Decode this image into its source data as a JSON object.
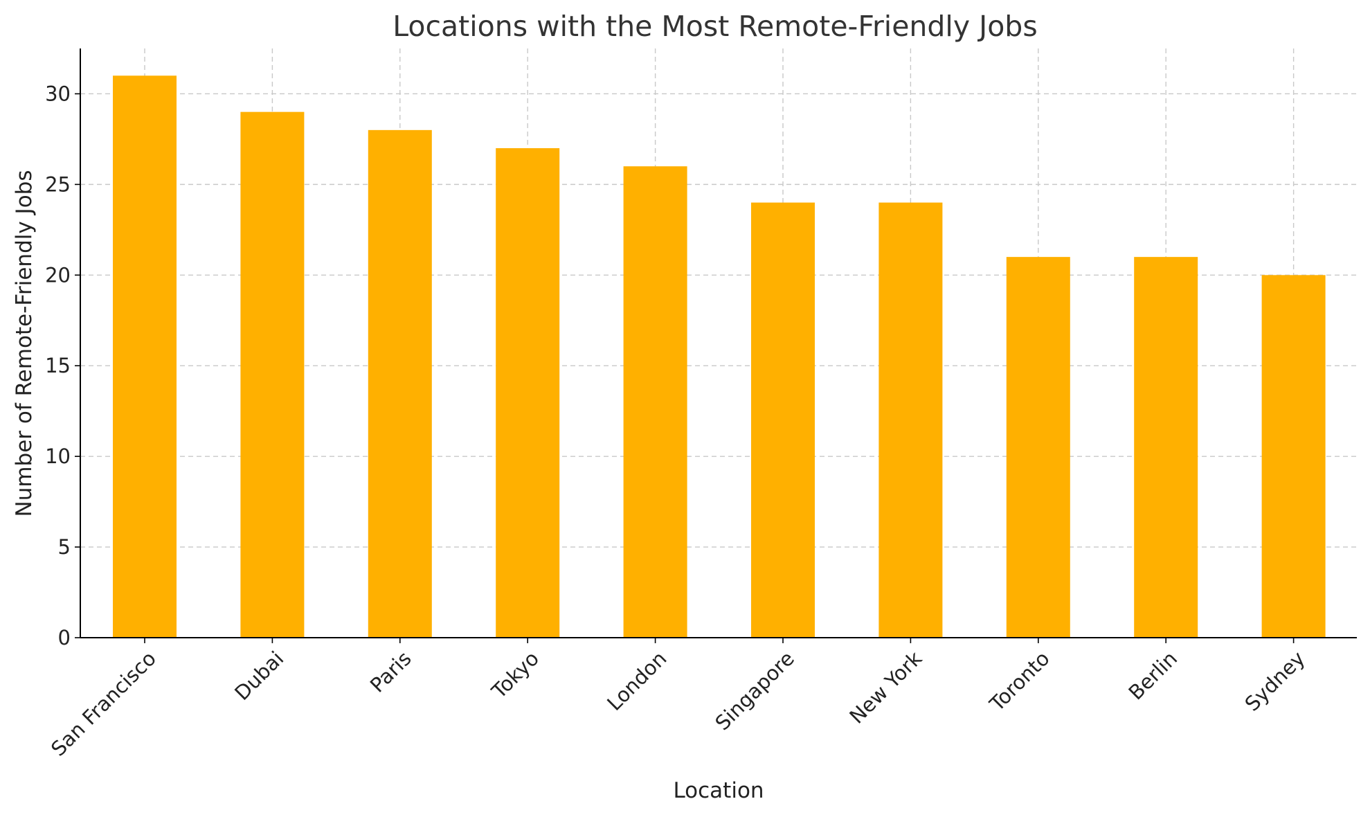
{
  "chart_data": {
    "type": "bar",
    "title": "Locations with the Most Remote-Friendly Jobs",
    "xlabel": "Location",
    "ylabel": "Number of Remote-Friendly Jobs",
    "categories": [
      "San Francisco",
      "Dubai",
      "Paris",
      "Tokyo",
      "London",
      "Singapore",
      "New York",
      "Toronto",
      "Berlin",
      "Sydney"
    ],
    "values": [
      31,
      29,
      28,
      27,
      26,
      24,
      24,
      21,
      21,
      20
    ],
    "ylim": [
      0,
      32.5
    ],
    "yticks": [
      0,
      5,
      10,
      15,
      20,
      25,
      30
    ],
    "grid": true,
    "legend": "none",
    "bar_color": "#FFB000"
  }
}
